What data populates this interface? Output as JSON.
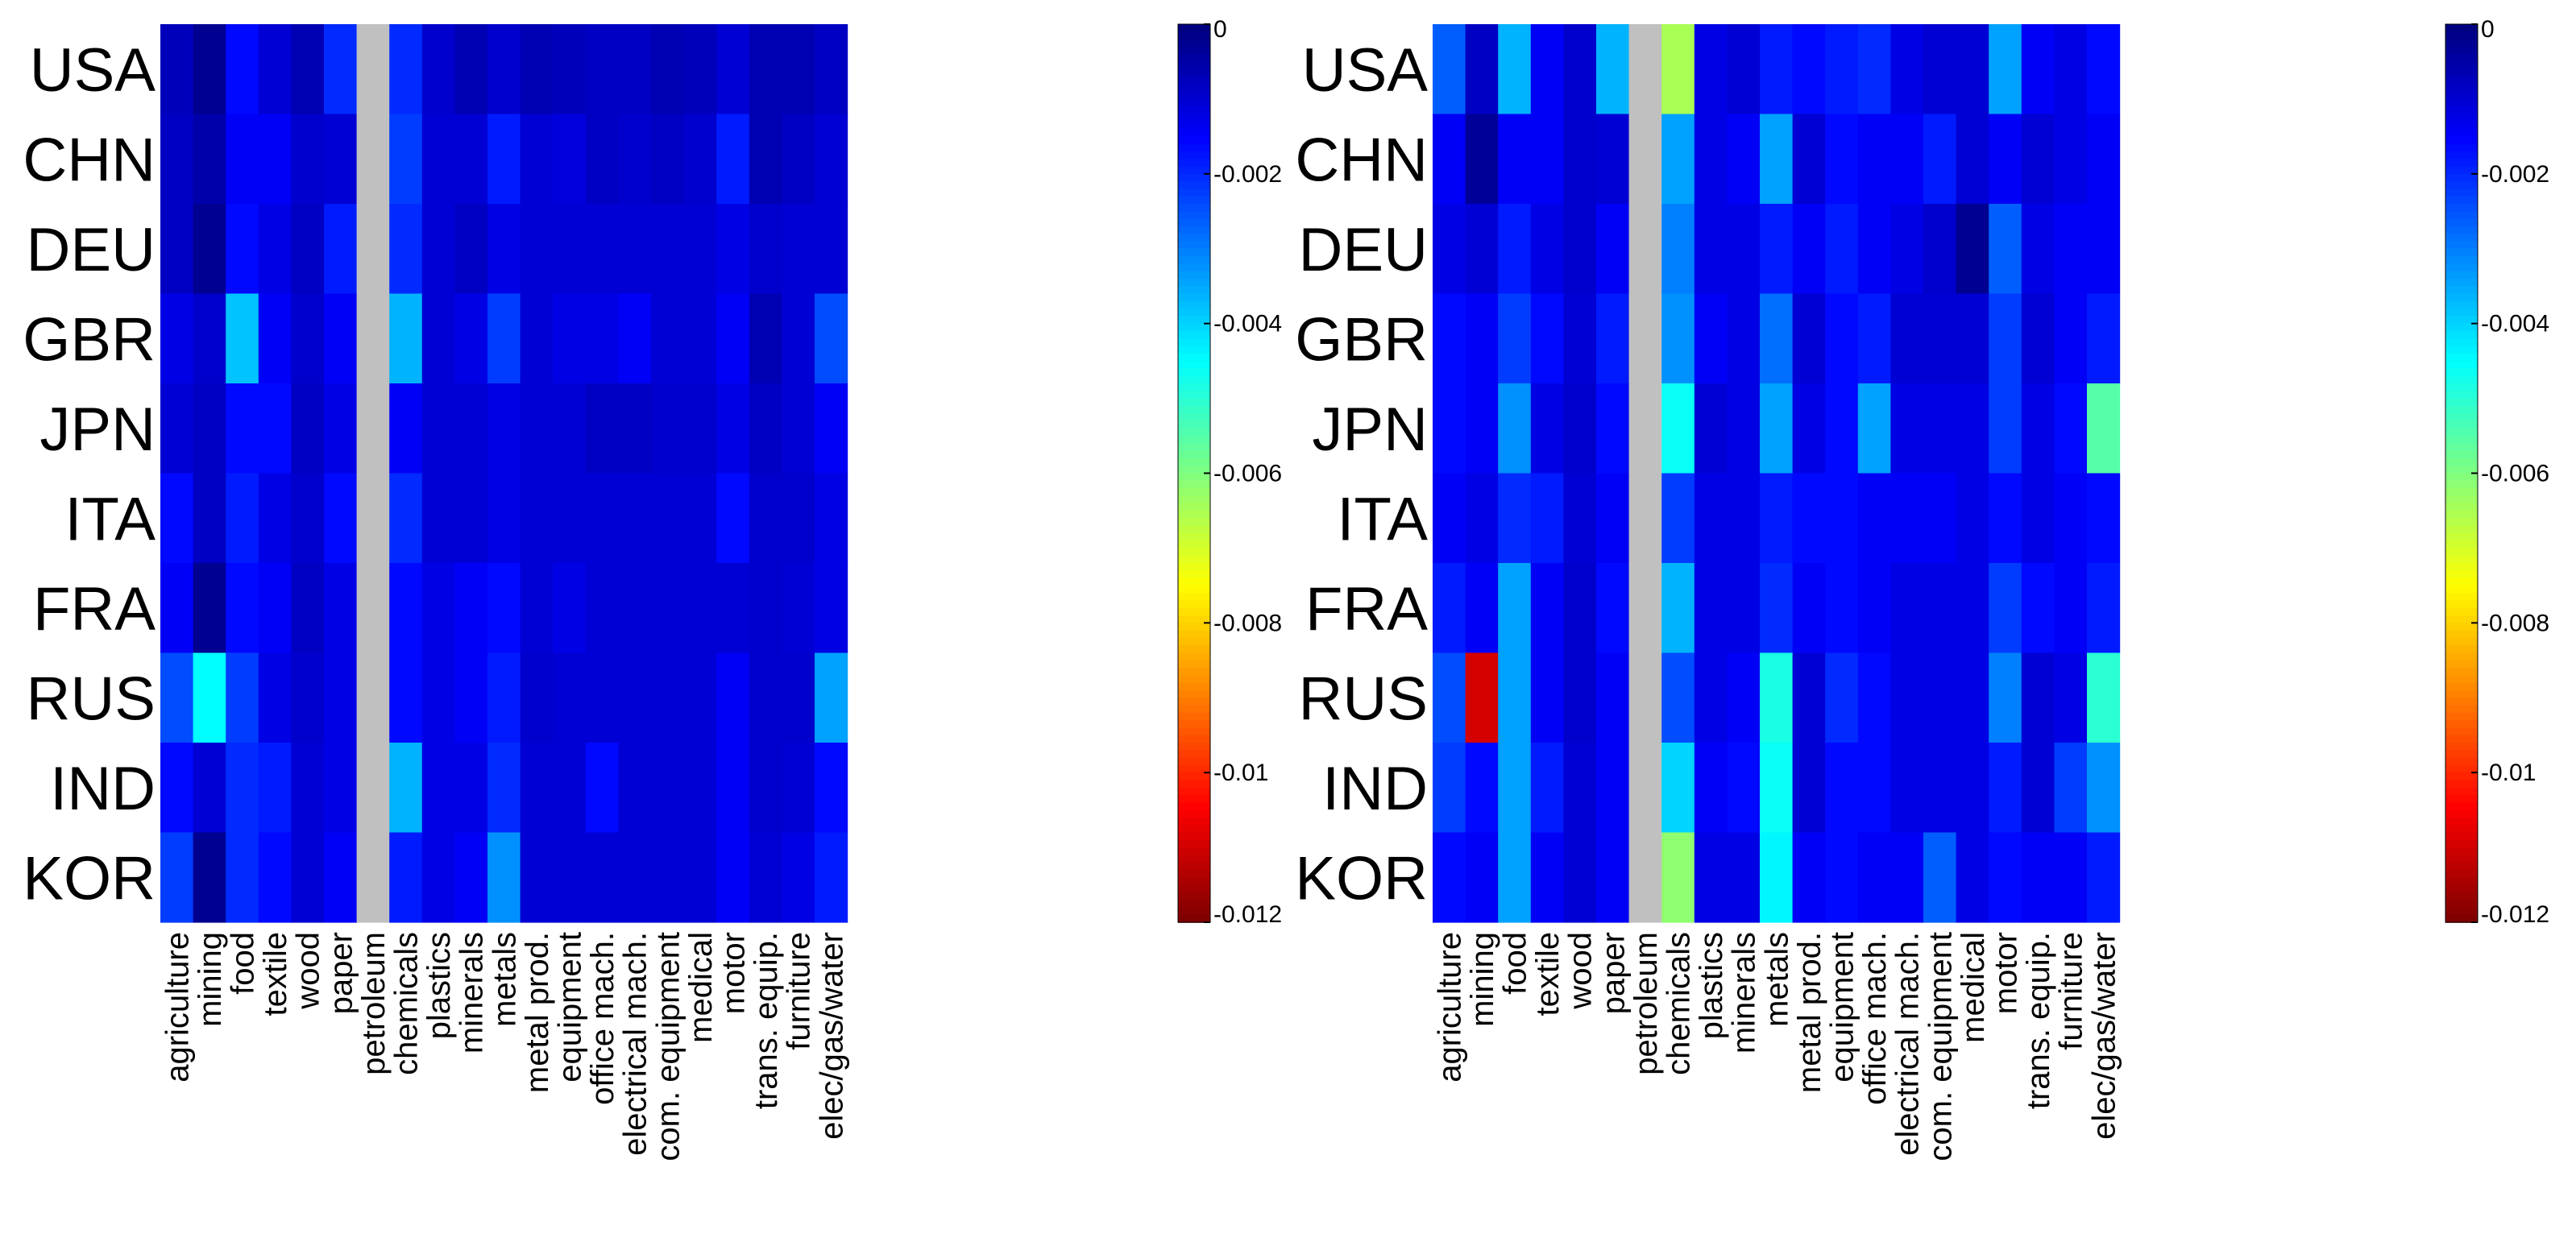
{
  "chart_data": [
    {
      "type": "heatmap",
      "title": "",
      "rows": [
        "USA",
        "CHN",
        "DEU",
        "GBR",
        "JPN",
        "ITA",
        "FRA",
        "RUS",
        "IND",
        "KOR"
      ],
      "columns": [
        "agriculture",
        "mining",
        "food",
        "textile",
        "wood",
        "paper",
        "petroleum",
        "chemicals",
        "plastics",
        "minerals",
        "metals",
        "metal prod.",
        "equipment",
        "office mach.",
        "electrical mach.",
        "com. equipment",
        "medical",
        "motor",
        "trans. equip.",
        "furniture",
        "elec/gas/water"
      ],
      "values": [
        [
          -0.0007,
          -0.0002,
          -0.0016,
          -0.001,
          -0.0006,
          -0.002,
          null,
          -0.002,
          -0.0009,
          -0.0006,
          -0.0009,
          -0.0006,
          -0.0007,
          -0.0008,
          -0.0008,
          -0.0006,
          -0.0007,
          -0.001,
          -0.0006,
          -0.0006,
          -0.0008
        ],
        [
          -0.0008,
          -0.0005,
          -0.0014,
          -0.0014,
          -0.0009,
          -0.001,
          null,
          -0.0022,
          -0.001,
          -0.001,
          -0.0018,
          -0.001,
          -0.0011,
          -0.0008,
          -0.0009,
          -0.0008,
          -0.0009,
          -0.0018,
          -0.0006,
          -0.0008,
          -0.001
        ],
        [
          -0.0008,
          -0.0002,
          -0.0016,
          -0.0012,
          -0.0008,
          -0.0018,
          null,
          -0.002,
          -0.001,
          -0.0008,
          -0.0012,
          -0.001,
          -0.001,
          -0.001,
          -0.001,
          -0.001,
          -0.001,
          -0.0012,
          -0.0009,
          -0.001,
          -0.001
        ],
        [
          -0.0012,
          -0.0009,
          -0.0038,
          -0.0014,
          -0.0009,
          -0.0014,
          null,
          -0.0036,
          -0.001,
          -0.0012,
          -0.0022,
          -0.001,
          -0.0012,
          -0.0012,
          -0.0014,
          -0.001,
          -0.001,
          -0.0014,
          -0.0006,
          -0.001,
          -0.0024
        ],
        [
          -0.001,
          -0.0008,
          -0.0016,
          -0.0016,
          -0.0008,
          -0.0012,
          null,
          -0.0014,
          -0.001,
          -0.001,
          -0.0012,
          -0.001,
          -0.001,
          -0.0008,
          -0.0008,
          -0.0009,
          -0.0009,
          -0.0012,
          -0.0008,
          -0.001,
          -0.0014
        ],
        [
          -0.0016,
          -0.0008,
          -0.0018,
          -0.0012,
          -0.0009,
          -0.0016,
          null,
          -0.002,
          -0.001,
          -0.001,
          -0.0012,
          -0.001,
          -0.001,
          -0.001,
          -0.001,
          -0.001,
          -0.001,
          -0.0016,
          -0.0009,
          -0.0009,
          -0.0012
        ],
        [
          -0.0014,
          -0.0002,
          -0.0016,
          -0.0014,
          -0.0008,
          -0.0012,
          null,
          -0.0016,
          -0.0012,
          -0.0014,
          -0.0016,
          -0.001,
          -0.0012,
          -0.001,
          -0.001,
          -0.001,
          -0.001,
          -0.001,
          -0.0009,
          -0.001,
          -0.0012
        ],
        [
          -0.0024,
          -0.0045,
          -0.0022,
          -0.0012,
          -0.0009,
          -0.0012,
          null,
          -0.0016,
          -0.0012,
          -0.0014,
          -0.0018,
          -0.0009,
          -0.001,
          -0.001,
          -0.001,
          -0.001,
          -0.001,
          -0.0014,
          -0.0009,
          -0.0009,
          -0.0034
        ],
        [
          -0.0016,
          -0.001,
          -0.002,
          -0.0018,
          -0.001,
          -0.0012,
          null,
          -0.0036,
          -0.0012,
          -0.0012,
          -0.002,
          -0.001,
          -0.001,
          -0.0016,
          -0.001,
          -0.001,
          -0.001,
          -0.0014,
          -0.0009,
          -0.001,
          -0.0016
        ],
        [
          -0.0022,
          -0.0002,
          -0.002,
          -0.0016,
          -0.001,
          -0.0014,
          null,
          -0.0018,
          -0.0012,
          -0.0014,
          -0.0032,
          -0.001,
          -0.001,
          -0.001,
          -0.001,
          -0.001,
          -0.001,
          -0.0014,
          -0.001,
          -0.0012,
          -0.0018
        ]
      ],
      "colorbar": {
        "range": [
          0,
          -0.012
        ],
        "ticks": [
          "0",
          "-0.002",
          "-0.004",
          "-0.006",
          "-0.008",
          "-0.01",
          "-0.012"
        ]
      }
    },
    {
      "type": "heatmap",
      "title": "",
      "rows": [
        "USA",
        "CHN",
        "DEU",
        "GBR",
        "JPN",
        "ITA",
        "FRA",
        "RUS",
        "IND",
        "KOR"
      ],
      "columns": [
        "agriculture",
        "mining",
        "food",
        "textile",
        "wood",
        "paper",
        "petroleum",
        "chemicals",
        "plastics",
        "minerals",
        "metals",
        "metal prod.",
        "equipment",
        "office mach.",
        "electrical mach.",
        "com. equipment",
        "medical",
        "motor",
        "trans. equip.",
        "furniture",
        "elec/gas/water"
      ],
      "values": [
        [
          -0.0026,
          -0.0008,
          -0.0036,
          -0.0014,
          -0.0009,
          -0.0036,
          null,
          -0.0065,
          -0.0012,
          -0.001,
          -0.0018,
          -0.0016,
          -0.0018,
          -0.002,
          -0.0012,
          -0.001,
          -0.001,
          -0.0034,
          -0.0014,
          -0.0012,
          -0.0016
        ],
        [
          -0.0014,
          -0.0003,
          -0.0014,
          -0.0014,
          -0.0009,
          -0.001,
          null,
          -0.0034,
          -0.0012,
          -0.0014,
          -0.0034,
          -0.001,
          -0.0016,
          -0.0014,
          -0.0014,
          -0.0018,
          -0.001,
          -0.0014,
          -0.001,
          -0.0012,
          -0.0014
        ],
        [
          -0.0012,
          -0.001,
          -0.0018,
          -0.0012,
          -0.0009,
          -0.0014,
          null,
          -0.003,
          -0.0012,
          -0.0012,
          -0.0018,
          -0.0014,
          -0.0018,
          -0.0014,
          -0.0012,
          -0.0009,
          -0.0002,
          -0.0026,
          -0.0012,
          -0.0014,
          -0.0014
        ],
        [
          -0.0016,
          -0.0014,
          -0.0022,
          -0.0016,
          -0.001,
          -0.0018,
          null,
          -0.0032,
          -0.0014,
          -0.0012,
          -0.0028,
          -0.001,
          -0.0016,
          -0.0018,
          -0.001,
          -0.001,
          -0.001,
          -0.0022,
          -0.001,
          -0.0014,
          -0.0018
        ],
        [
          -0.0016,
          -0.0014,
          -0.0032,
          -0.0012,
          -0.0009,
          -0.0016,
          null,
          -0.0046,
          -0.001,
          -0.0012,
          -0.0034,
          -0.0012,
          -0.0016,
          -0.0034,
          -0.0012,
          -0.0012,
          -0.0012,
          -0.0022,
          -0.0012,
          -0.0016,
          -0.0055
        ],
        [
          -0.0014,
          -0.0012,
          -0.002,
          -0.0018,
          -0.001,
          -0.0014,
          null,
          -0.0022,
          -0.0012,
          -0.0012,
          -0.0018,
          -0.0016,
          -0.0016,
          -0.0014,
          -0.0014,
          -0.0014,
          -0.0012,
          -0.0016,
          -0.0012,
          -0.0014,
          -0.0016
        ],
        [
          -0.0018,
          -0.0014,
          -0.0034,
          -0.0014,
          -0.0009,
          -0.0016,
          null,
          -0.0036,
          -0.0012,
          -0.0012,
          -0.002,
          -0.0014,
          -0.0016,
          -0.0014,
          -0.0012,
          -0.0012,
          -0.0012,
          -0.0022,
          -0.0016,
          -0.0014,
          -0.0018
        ],
        [
          -0.0024,
          -0.011,
          -0.0034,
          -0.0014,
          -0.0009,
          -0.0014,
          null,
          -0.0024,
          -0.0012,
          -0.0014,
          -0.0048,
          -0.001,
          -0.002,
          -0.0016,
          -0.0012,
          -0.0012,
          -0.0012,
          -0.003,
          -0.001,
          -0.0012,
          -0.005
        ],
        [
          -0.0022,
          -0.0016,
          -0.0034,
          -0.0018,
          -0.001,
          -0.0014,
          null,
          -0.004,
          -0.0014,
          -0.0016,
          -0.0046,
          -0.001,
          -0.0016,
          -0.0016,
          -0.0012,
          -0.0012,
          -0.0012,
          -0.0018,
          -0.001,
          -0.0022,
          -0.0032
        ],
        [
          -0.0016,
          -0.0014,
          -0.0034,
          -0.0014,
          -0.001,
          -0.0014,
          null,
          -0.0062,
          -0.0012,
          -0.0012,
          -0.0044,
          -0.0014,
          -0.0016,
          -0.0014,
          -0.0014,
          -0.0026,
          -0.0012,
          -0.0016,
          -0.0014,
          -0.0014,
          -0.0018
        ]
      ],
      "colorbar": {
        "range": [
          0,
          -0.012
        ],
        "ticks": [
          "0",
          "-0.002",
          "-0.004",
          "-0.006",
          "-0.008",
          "-0.01",
          "-0.012"
        ]
      }
    }
  ]
}
